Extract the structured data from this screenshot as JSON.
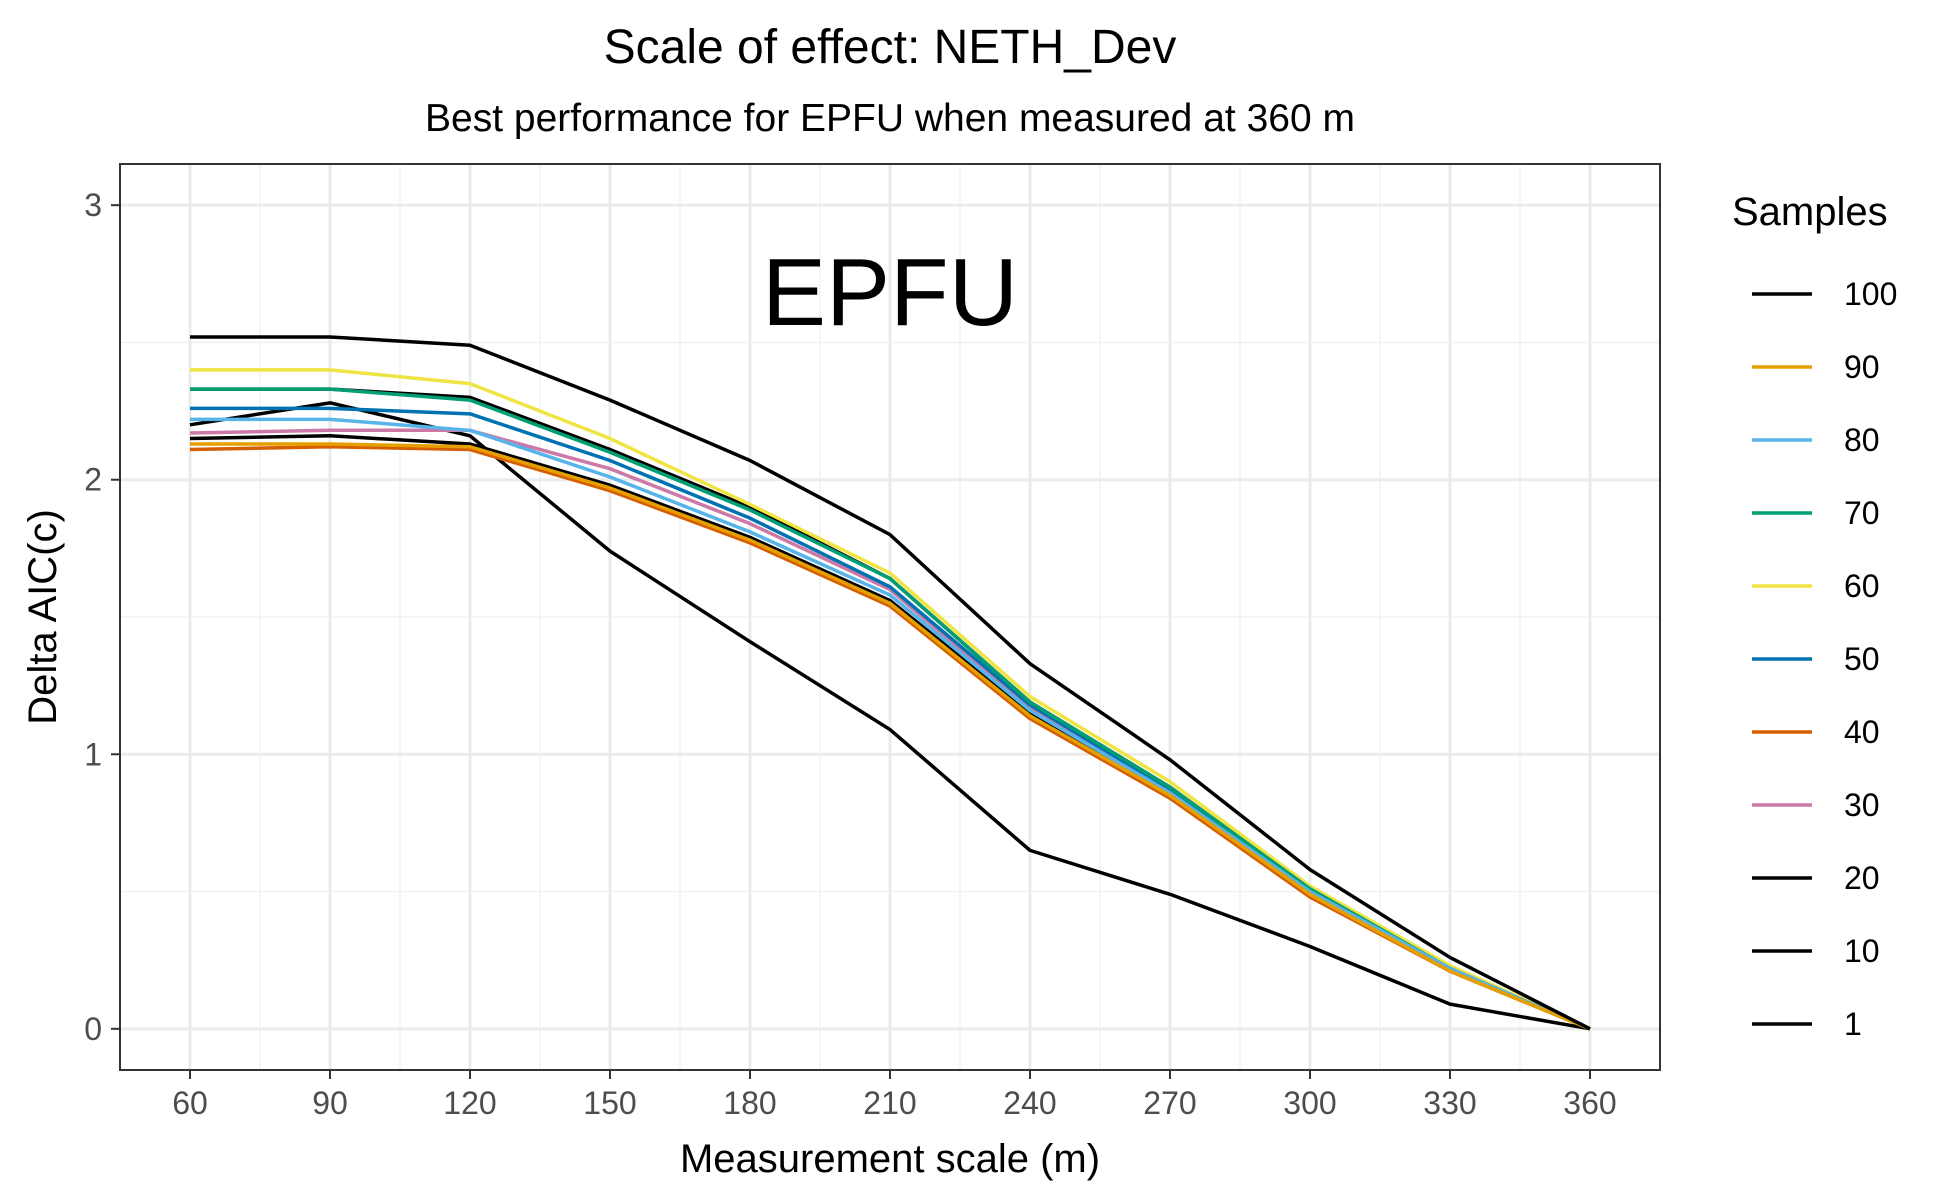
{
  "chart_data": {
    "type": "line",
    "title": "Scale of effect: NETH_Dev",
    "subtitle": "Best performance for EPFU when measured at 360 m",
    "xlabel": "Measurement scale (m)",
    "ylabel": "Delta AIC(c)",
    "annotation": "EPFU",
    "x": [
      60,
      90,
      120,
      150,
      180,
      210,
      240,
      270,
      300,
      330,
      360
    ],
    "xlim": [
      45,
      375
    ],
    "ylim": [
      -0.15,
      3.15
    ],
    "x_ticks": [
      "60",
      "90",
      "120",
      "150",
      "180",
      "210",
      "240",
      "270",
      "300",
      "330",
      "360"
    ],
    "y_ticks": [
      "0",
      "1",
      "2",
      "3"
    ],
    "y_tick_values": [
      0,
      1,
      2,
      3
    ],
    "grid": true,
    "legend": {
      "title": "Samples",
      "position": "right",
      "entries": [
        "100",
        "90",
        "80",
        "70",
        "60",
        "50",
        "40",
        "30",
        "20",
        "10",
        "1"
      ]
    },
    "series": [
      {
        "name": "100",
        "color": "#000000",
        "values": [
          2.52,
          2.52,
          2.49,
          2.29,
          2.07,
          1.8,
          1.33,
          0.98,
          0.58,
          0.26,
          0.0
        ]
      },
      {
        "name": "90",
        "color": "#E69F00",
        "values": [
          2.13,
          2.13,
          2.12,
          1.97,
          1.78,
          1.55,
          1.14,
          0.85,
          0.49,
          0.21,
          0.0
        ]
      },
      {
        "name": "80",
        "color": "#56B4E9",
        "values": [
          2.22,
          2.22,
          2.18,
          2.01,
          1.81,
          1.58,
          1.16,
          0.86,
          0.5,
          0.22,
          0.0
        ]
      },
      {
        "name": "70",
        "color": "#009E73",
        "values": [
          2.33,
          2.33,
          2.29,
          2.1,
          1.89,
          1.64,
          1.19,
          0.88,
          0.51,
          0.22,
          0.0
        ]
      },
      {
        "name": "60",
        "color": "#F0E442",
        "values": [
          2.4,
          2.4,
          2.35,
          2.15,
          1.91,
          1.66,
          1.21,
          0.9,
          0.52,
          0.23,
          0.0
        ]
      },
      {
        "name": "50",
        "color": "#0072B2",
        "values": [
          2.26,
          2.26,
          2.24,
          2.07,
          1.86,
          1.61,
          1.18,
          0.87,
          0.5,
          0.22,
          0.0
        ]
      },
      {
        "name": "40",
        "color": "#D55E00",
        "values": [
          2.11,
          2.12,
          2.11,
          1.96,
          1.77,
          1.54,
          1.13,
          0.84,
          0.48,
          0.21,
          0.0
        ]
      },
      {
        "name": "30",
        "color": "#CC79A7",
        "values": [
          2.17,
          2.18,
          2.18,
          2.04,
          1.84,
          1.6,
          1.17,
          0.86,
          0.5,
          0.22,
          0.0
        ]
      },
      {
        "name": "20",
        "color": "#000000",
        "values": [
          2.33,
          2.33,
          2.3,
          2.11,
          1.9,
          1.64,
          1.19,
          0.88,
          0.51,
          0.22,
          0.0
        ]
      },
      {
        "name": "10",
        "color": "#000000",
        "values": [
          2.15,
          2.16,
          2.13,
          1.98,
          1.79,
          1.56,
          1.15,
          0.85,
          0.49,
          0.21,
          0.0
        ]
      },
      {
        "name": "1",
        "color": "#000000",
        "values": [
          2.2,
          2.28,
          2.16,
          1.74,
          1.41,
          1.09,
          0.65,
          0.49,
          0.3,
          0.09,
          0.0
        ]
      }
    ]
  }
}
